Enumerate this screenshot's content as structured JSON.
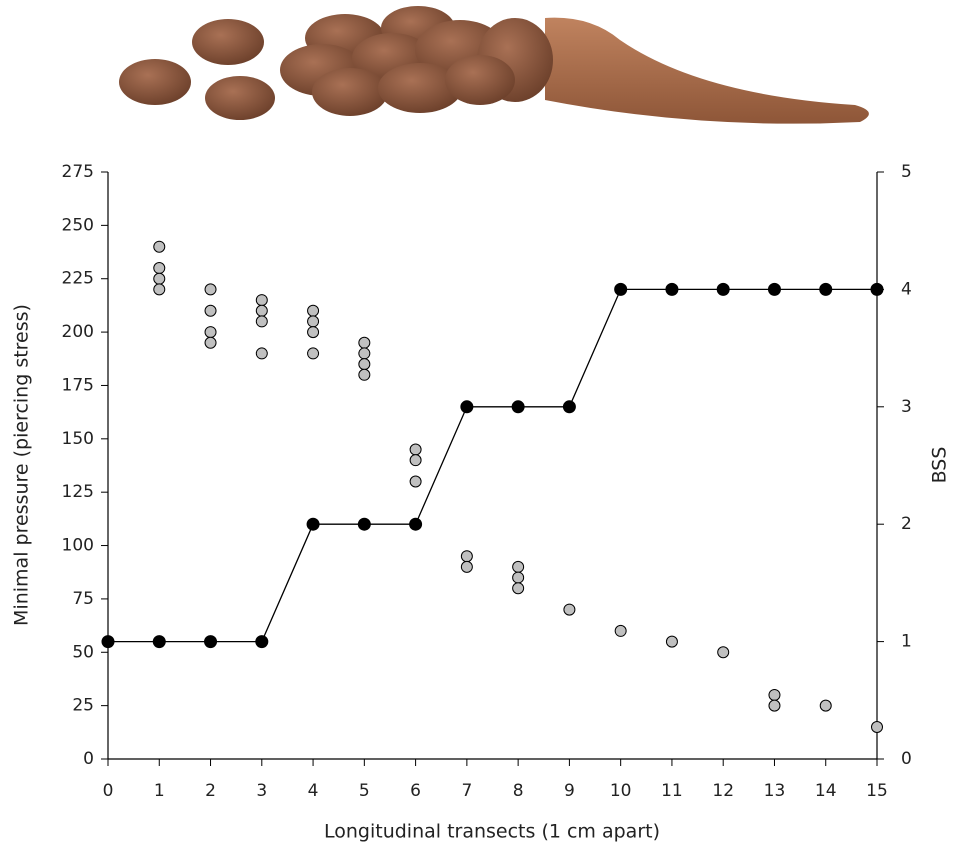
{
  "chart_data": {
    "type": "scatter",
    "xlabel": "Longitudinal transects (1 cm apart)",
    "ylabel": "Minimal pressure (piercing stress)",
    "y2label": "BSS",
    "xlim": [
      0,
      15
    ],
    "xticks": [
      0,
      1,
      2,
      3,
      4,
      5,
      6,
      7,
      8,
      9,
      10,
      11,
      12,
      13,
      14,
      15
    ],
    "ylim": [
      0,
      275
    ],
    "yticks": [
      0,
      25,
      50,
      75,
      100,
      125,
      150,
      175,
      200,
      225,
      250,
      275
    ],
    "y2lim": [
      0,
      5
    ],
    "y2ticks": [
      0,
      1,
      2,
      3,
      4,
      5
    ],
    "series": [
      {
        "type": "scatter",
        "color": "#c0c0c0",
        "x": [
          1,
          1,
          1,
          1,
          2,
          2,
          2,
          2,
          3,
          3,
          3,
          3,
          4,
          4,
          4,
          4,
          5,
          5,
          5,
          5,
          6,
          6,
          6,
          7,
          7,
          8,
          8,
          8,
          9,
          10,
          11,
          12,
          13,
          13,
          14,
          15
        ],
        "values": [
          240,
          230,
          225,
          220,
          220,
          210,
          200,
          195,
          215,
          210,
          205,
          190,
          210,
          205,
          200,
          190,
          195,
          190,
          185,
          180,
          145,
          140,
          130,
          95,
          90,
          90,
          85,
          80,
          70,
          60,
          55,
          50,
          30,
          25,
          25,
          15
        ]
      },
      {
        "type": "line",
        "axis": "y2",
        "color": "#000000",
        "x": [
          0,
          1,
          2,
          3,
          4,
          5,
          6,
          7,
          8,
          9,
          10,
          11,
          12,
          13,
          14,
          15
        ],
        "values": [
          1,
          1,
          1,
          1,
          2,
          2,
          2,
          3,
          3,
          3,
          4,
          4,
          4,
          4,
          4,
          4
        ]
      }
    ]
  }
}
